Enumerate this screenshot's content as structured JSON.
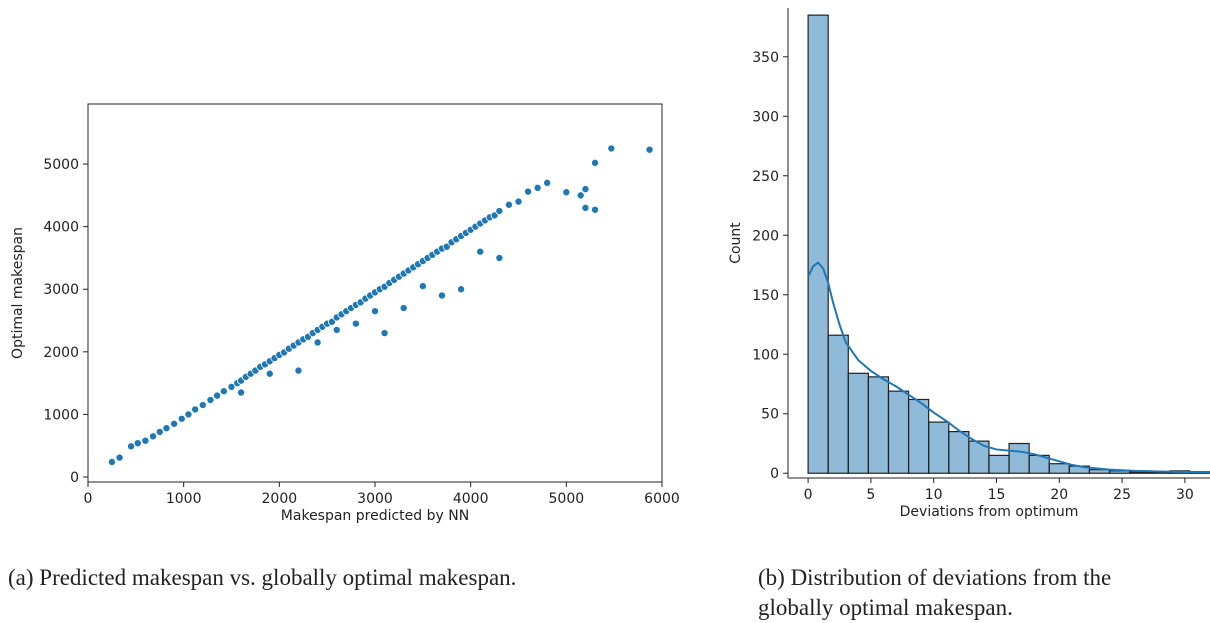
{
  "chart_data": [
    {
      "type": "scatter",
      "xlabel": "Makespan predicted by NN",
      "ylabel": "Optimal makespan",
      "color": "#1f77b4",
      "x": [
        250,
        330,
        450,
        520,
        600,
        680,
        750,
        820,
        900,
        980,
        1050,
        1120,
        1200,
        1280,
        1350,
        1420,
        1500,
        1560,
        1600,
        1650,
        1700,
        1750,
        1800,
        1850,
        1900,
        1950,
        2000,
        2050,
        2100,
        2150,
        2200,
        2250,
        2300,
        2350,
        2400,
        2450,
        2500,
        2550,
        2600,
        2650,
        2700,
        2750,
        2800,
        2850,
        2900,
        2950,
        3000,
        3050,
        3100,
        3150,
        3200,
        3250,
        3300,
        3350,
        3400,
        3450,
        3500,
        3550,
        3600,
        3650,
        3700,
        3750,
        3800,
        3850,
        3900,
        3950,
        4000,
        4050,
        4100,
        4150,
        4200,
        4250,
        4300,
        4400,
        4500,
        4600,
        4700,
        4800,
        5000,
        5150,
        5200,
        5300,
        5470,
        5870,
        2600,
        3100,
        3700,
        3900,
        4300,
        5200,
        5300,
        3300,
        2200,
        1600,
        2800,
        3500,
        4100,
        1900,
        2400,
        3000
      ],
      "y": [
        240,
        310,
        490,
        540,
        580,
        650,
        720,
        780,
        850,
        930,
        1000,
        1080,
        1150,
        1230,
        1300,
        1370,
        1440,
        1500,
        1540,
        1600,
        1650,
        1700,
        1760,
        1800,
        1850,
        1900,
        1950,
        1990,
        2050,
        2100,
        2150,
        2200,
        2240,
        2300,
        2350,
        2400,
        2450,
        2480,
        2550,
        2600,
        2650,
        2700,
        2750,
        2790,
        2850,
        2900,
        2950,
        3000,
        3040,
        3100,
        3150,
        3200,
        3250,
        3300,
        3350,
        3400,
        3450,
        3500,
        3550,
        3600,
        3650,
        3680,
        3750,
        3800,
        3850,
        3900,
        3950,
        4000,
        4050,
        4100,
        4150,
        4180,
        4250,
        4350,
        4400,
        4560,
        4620,
        4700,
        4550,
        4500,
        4600,
        5020,
        5250,
        5230,
        2350,
        2300,
        2900,
        3000,
        3500,
        4300,
        4270,
        2700,
        1700,
        1350,
        2450,
        3050,
        3600,
        1650,
        2150,
        2650
      ],
      "xlim": [
        0,
        6000
      ],
      "ylim": [
        -80,
        5960
      ],
      "xticks": [
        0,
        1000,
        2000,
        3000,
        4000,
        5000,
        6000
      ],
      "yticks": [
        0,
        1000,
        2000,
        3000,
        4000,
        5000
      ],
      "caption": "(a) Predicted makespan vs. globally optimal makespan."
    },
    {
      "type": "histogram",
      "xlabel": "Deviations from optimum",
      "ylabel": "Count",
      "color": "#1f77b4",
      "bins": [
        0,
        1.6,
        3.2,
        4.8,
        6.4,
        8,
        9.6,
        11.2,
        12.8,
        14.4,
        16,
        17.6,
        19.2,
        20.8,
        22.4,
        24,
        25.6,
        27.2,
        28.8,
        30.4,
        32
      ],
      "counts": [
        385,
        116,
        84,
        81,
        69,
        62,
        43,
        35,
        27,
        15,
        25,
        15,
        8,
        6,
        3,
        2,
        1,
        1,
        2,
        1
      ],
      "kde": {
        "x": [
          0,
          0.4,
          0.8,
          1.2,
          1.6,
          2,
          2.5,
          3,
          4,
          5,
          6,
          7,
          8,
          9,
          10,
          11,
          12,
          13,
          14,
          15,
          16,
          17,
          18,
          19,
          20,
          21,
          22,
          24,
          26,
          28,
          30,
          32
        ],
        "y": [
          165,
          174,
          177,
          172,
          160,
          143,
          125,
          110,
          95,
          86,
          79,
          73,
          66,
          59,
          51,
          44,
          36,
          29,
          23,
          20,
          19,
          18,
          16,
          13,
          10,
          7,
          5,
          3,
          2,
          1.5,
          1,
          1
        ]
      },
      "xlim": [
        -1.6,
        32
      ],
      "ylim": [
        -4,
        391
      ],
      "xticks": [
        0,
        5,
        10,
        15,
        20,
        25,
        30
      ],
      "yticks": [
        0,
        50,
        100,
        150,
        200,
        250,
        300,
        350
      ],
      "caption": "(b) Distribution of deviations from the globally optimal makespan."
    }
  ]
}
